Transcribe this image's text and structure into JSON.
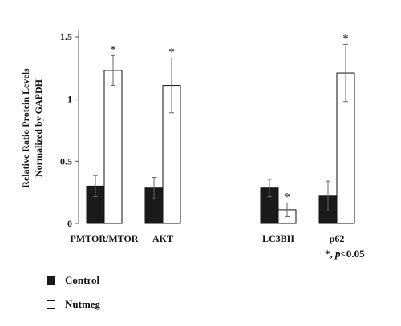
{
  "chart_data": {
    "type": "bar",
    "categories": [
      "PMTOR/MTOR",
      "AKT",
      "LC3BII",
      "p62"
    ],
    "series": [
      {
        "name": "Control",
        "color": "#1a1a1a",
        "values": [
          0.3,
          0.285,
          0.285,
          0.22
        ],
        "errors": [
          0.085,
          0.085,
          0.07,
          0.12
        ]
      },
      {
        "name": "Nutmeg",
        "color": "#ffffff",
        "values": [
          1.23,
          1.11,
          0.11,
          1.21
        ],
        "errors": [
          0.12,
          0.22,
          0.055,
          0.23
        ]
      }
    ],
    "significance": [
      "*",
      "*",
      "*",
      "*"
    ],
    "ylabel_line1": "Relative Ratio Protein Levels",
    "ylabel_line2": "Normalized by GAPDH",
    "ylim": [
      0,
      1.5
    ],
    "yticks": [
      "0",
      "0.5",
      "1",
      "1.5"
    ],
    "ytick_values": [
      0,
      0.5,
      1,
      1.5
    ],
    "legend_placement": "bottom-left",
    "grid": false
  },
  "note": {
    "star": "*",
    "comma": ",",
    "p": "p",
    "threshold": "<0.05"
  },
  "legend": {
    "control": "Control",
    "nutmeg": "Nutmeg"
  }
}
